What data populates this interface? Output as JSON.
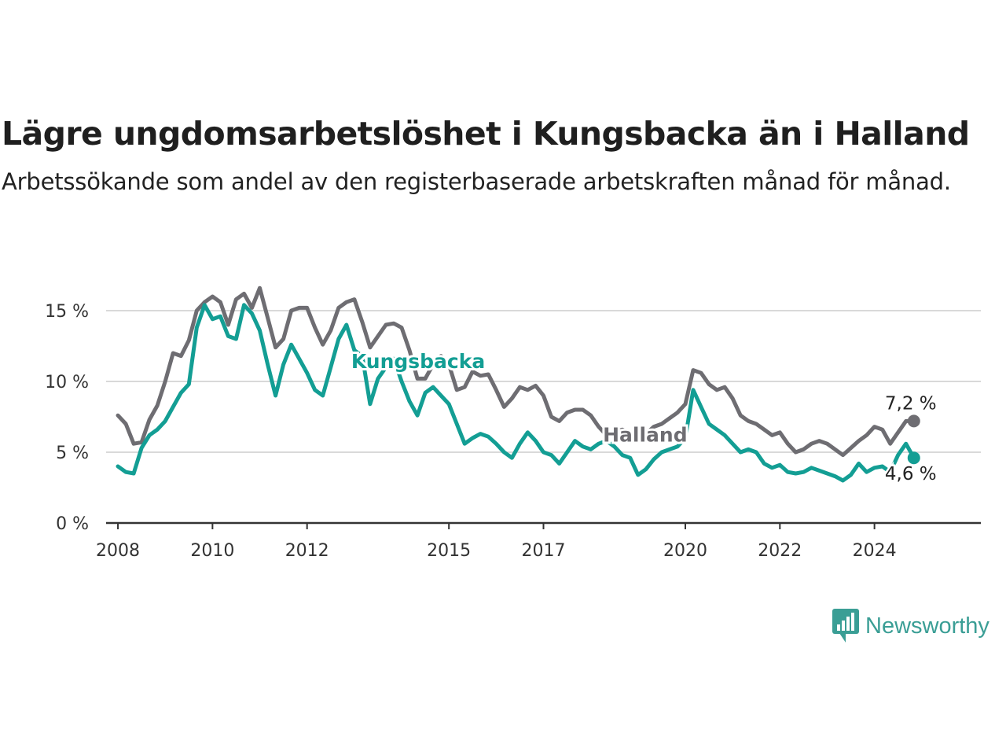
{
  "title": "Lägre ungdomsarbetslöshet i Kungsbacka än i Halland",
  "subtitle": "Arbetssökande som andel av den registerbaserade arbetskraften månad för månad.",
  "brand": {
    "name": "Newsworthy",
    "icon": "newsworthy-logo-icon",
    "color": "#3a9e95"
  },
  "chart_data": {
    "type": "line",
    "x_axis": {
      "type": "date",
      "ticks": [
        "2008",
        "2010",
        "2012",
        "2015",
        "2017",
        "2020",
        "2022",
        "2024"
      ]
    },
    "y_axis": {
      "ticks": [
        "0 %",
        "5 %",
        "10 %",
        "15 %"
      ],
      "tick_values": [
        0,
        5,
        10,
        15
      ],
      "ylim": [
        0,
        17.5
      ]
    },
    "grid": true,
    "series": [
      {
        "name": "Halland",
        "color": "#6e6d72",
        "end_label": "7,2 %",
        "points": [
          [
            "2008-01",
            7.6
          ],
          [
            "2008-03",
            7.0
          ],
          [
            "2008-05",
            5.6
          ],
          [
            "2008-07",
            5.7
          ],
          [
            "2008-09",
            7.3
          ],
          [
            "2008-11",
            8.3
          ],
          [
            "2009-01",
            10.0
          ],
          [
            "2009-03",
            12.0
          ],
          [
            "2009-05",
            11.8
          ],
          [
            "2009-07",
            12.9
          ],
          [
            "2009-09",
            15.0
          ],
          [
            "2009-11",
            15.6
          ],
          [
            "2010-01",
            16.0
          ],
          [
            "2010-03",
            15.6
          ],
          [
            "2010-05",
            14.0
          ],
          [
            "2010-07",
            15.8
          ],
          [
            "2010-09",
            16.2
          ],
          [
            "2010-11",
            15.2
          ],
          [
            "2011-01",
            16.6
          ],
          [
            "2011-03",
            14.5
          ],
          [
            "2011-05",
            12.4
          ],
          [
            "2011-07",
            13.0
          ],
          [
            "2011-09",
            15.0
          ],
          [
            "2011-11",
            15.2
          ],
          [
            "2012-01",
            15.2
          ],
          [
            "2012-03",
            13.8
          ],
          [
            "2012-05",
            12.6
          ],
          [
            "2012-07",
            13.6
          ],
          [
            "2012-09",
            15.2
          ],
          [
            "2012-11",
            15.6
          ],
          [
            "2013-01",
            15.8
          ],
          [
            "2013-03",
            14.2
          ],
          [
            "2013-05",
            12.4
          ],
          [
            "2013-07",
            13.2
          ],
          [
            "2013-09",
            14.0
          ],
          [
            "2013-11",
            14.1
          ],
          [
            "2014-01",
            13.8
          ],
          [
            "2014-03",
            12.2
          ],
          [
            "2014-05",
            10.2
          ],
          [
            "2014-07",
            10.2
          ],
          [
            "2014-09",
            11.2
          ],
          [
            "2014-11",
            11.8
          ],
          [
            "2015-01",
            11.2
          ],
          [
            "2015-03",
            9.4
          ],
          [
            "2015-05",
            9.6
          ],
          [
            "2015-07",
            10.7
          ],
          [
            "2015-09",
            10.4
          ],
          [
            "2015-11",
            10.5
          ],
          [
            "2016-01",
            9.4
          ],
          [
            "2016-03",
            8.2
          ],
          [
            "2016-05",
            8.8
          ],
          [
            "2016-07",
            9.6
          ],
          [
            "2016-09",
            9.4
          ],
          [
            "2016-11",
            9.7
          ],
          [
            "2017-01",
            9.0
          ],
          [
            "2017-03",
            7.5
          ],
          [
            "2017-05",
            7.2
          ],
          [
            "2017-07",
            7.8
          ],
          [
            "2017-09",
            8.0
          ],
          [
            "2017-11",
            8.0
          ],
          [
            "2018-01",
            7.6
          ],
          [
            "2018-03",
            6.8
          ],
          [
            "2018-05",
            6.2
          ],
          [
            "2018-07",
            6.4
          ],
          [
            "2018-09",
            6.6
          ],
          [
            "2018-11",
            6.3
          ],
          [
            "2019-01",
            6.0
          ],
          [
            "2019-03",
            6.3
          ],
          [
            "2019-05",
            6.8
          ],
          [
            "2019-07",
            7.0
          ],
          [
            "2019-09",
            7.4
          ],
          [
            "2019-11",
            7.8
          ],
          [
            "2020-01",
            8.4
          ],
          [
            "2020-03",
            10.8
          ],
          [
            "2020-05",
            10.6
          ],
          [
            "2020-07",
            9.8
          ],
          [
            "2020-09",
            9.4
          ],
          [
            "2020-11",
            9.6
          ],
          [
            "2021-01",
            8.8
          ],
          [
            "2021-03",
            7.6
          ],
          [
            "2021-05",
            7.2
          ],
          [
            "2021-07",
            7.0
          ],
          [
            "2021-09",
            6.6
          ],
          [
            "2021-11",
            6.2
          ],
          [
            "2022-01",
            6.4
          ],
          [
            "2022-03",
            5.6
          ],
          [
            "2022-05",
            5.0
          ],
          [
            "2022-07",
            5.2
          ],
          [
            "2022-09",
            5.6
          ],
          [
            "2022-11",
            5.8
          ],
          [
            "2023-01",
            5.6
          ],
          [
            "2023-03",
            5.2
          ],
          [
            "2023-05",
            4.8
          ],
          [
            "2023-07",
            5.3
          ],
          [
            "2023-09",
            5.8
          ],
          [
            "2023-11",
            6.2
          ],
          [
            "2024-01",
            6.8
          ],
          [
            "2024-03",
            6.6
          ],
          [
            "2024-05",
            5.6
          ],
          [
            "2024-07",
            6.4
          ],
          [
            "2024-09",
            7.2
          ],
          [
            "2024-11",
            7.2
          ]
        ]
      },
      {
        "name": "Kungsbacka",
        "color": "#139e94",
        "end_label": "4,6 %",
        "points": [
          [
            "2008-01",
            4.0
          ],
          [
            "2008-03",
            3.6
          ],
          [
            "2008-05",
            3.5
          ],
          [
            "2008-07",
            5.3
          ],
          [
            "2008-09",
            6.2
          ],
          [
            "2008-11",
            6.6
          ],
          [
            "2009-01",
            7.2
          ],
          [
            "2009-03",
            8.2
          ],
          [
            "2009-05",
            9.2
          ],
          [
            "2009-07",
            9.8
          ],
          [
            "2009-09",
            13.8
          ],
          [
            "2009-11",
            15.4
          ],
          [
            "2010-01",
            14.4
          ],
          [
            "2010-03",
            14.6
          ],
          [
            "2010-05",
            13.2
          ],
          [
            "2010-07",
            13.0
          ],
          [
            "2010-09",
            15.4
          ],
          [
            "2010-11",
            14.8
          ],
          [
            "2011-01",
            13.6
          ],
          [
            "2011-03",
            11.2
          ],
          [
            "2011-05",
            9.0
          ],
          [
            "2011-07",
            11.2
          ],
          [
            "2011-09",
            12.6
          ],
          [
            "2011-11",
            11.6
          ],
          [
            "2012-01",
            10.6
          ],
          [
            "2012-03",
            9.4
          ],
          [
            "2012-05",
            9.0
          ],
          [
            "2012-07",
            11.0
          ],
          [
            "2012-09",
            13.0
          ],
          [
            "2012-11",
            14.0
          ],
          [
            "2013-01",
            12.2
          ],
          [
            "2013-03",
            11.8
          ],
          [
            "2013-05",
            8.4
          ],
          [
            "2013-07",
            10.2
          ],
          [
            "2013-09",
            11.0
          ],
          [
            "2013-11",
            11.6
          ],
          [
            "2014-01",
            10.0
          ],
          [
            "2014-03",
            8.6
          ],
          [
            "2014-05",
            7.6
          ],
          [
            "2014-07",
            9.2
          ],
          [
            "2014-09",
            9.6
          ],
          [
            "2014-11",
            9.0
          ],
          [
            "2015-01",
            8.4
          ],
          [
            "2015-03",
            7.0
          ],
          [
            "2015-05",
            5.6
          ],
          [
            "2015-07",
            6.0
          ],
          [
            "2015-09",
            6.3
          ],
          [
            "2015-11",
            6.1
          ],
          [
            "2016-01",
            5.6
          ],
          [
            "2016-03",
            5.0
          ],
          [
            "2016-05",
            4.6
          ],
          [
            "2016-07",
            5.6
          ],
          [
            "2016-09",
            6.4
          ],
          [
            "2016-11",
            5.8
          ],
          [
            "2017-01",
            5.0
          ],
          [
            "2017-03",
            4.8
          ],
          [
            "2017-05",
            4.2
          ],
          [
            "2017-07",
            5.0
          ],
          [
            "2017-09",
            5.8
          ],
          [
            "2017-11",
            5.4
          ],
          [
            "2018-01",
            5.2
          ],
          [
            "2018-03",
            5.6
          ],
          [
            "2018-05",
            5.8
          ],
          [
            "2018-07",
            5.4
          ],
          [
            "2018-09",
            4.8
          ],
          [
            "2018-11",
            4.6
          ],
          [
            "2019-01",
            3.4
          ],
          [
            "2019-03",
            3.8
          ],
          [
            "2019-05",
            4.5
          ],
          [
            "2019-07",
            5.0
          ],
          [
            "2019-09",
            5.2
          ],
          [
            "2019-11",
            5.4
          ],
          [
            "2020-01",
            6.0
          ],
          [
            "2020-03",
            9.4
          ],
          [
            "2020-05",
            8.2
          ],
          [
            "2020-07",
            7.0
          ],
          [
            "2020-09",
            6.6
          ],
          [
            "2020-11",
            6.2
          ],
          [
            "2021-01",
            5.6
          ],
          [
            "2021-03",
            5.0
          ],
          [
            "2021-05",
            5.2
          ],
          [
            "2021-07",
            5.0
          ],
          [
            "2021-09",
            4.2
          ],
          [
            "2021-11",
            3.9
          ],
          [
            "2022-01",
            4.1
          ],
          [
            "2022-03",
            3.6
          ],
          [
            "2022-05",
            3.5
          ],
          [
            "2022-07",
            3.6
          ],
          [
            "2022-09",
            3.9
          ],
          [
            "2022-11",
            3.7
          ],
          [
            "2023-01",
            3.5
          ],
          [
            "2023-03",
            3.3
          ],
          [
            "2023-05",
            3.0
          ],
          [
            "2023-07",
            3.4
          ],
          [
            "2023-09",
            4.2
          ],
          [
            "2023-11",
            3.6
          ],
          [
            "2024-01",
            3.9
          ],
          [
            "2024-03",
            4.0
          ],
          [
            "2024-05",
            3.6
          ],
          [
            "2024-07",
            4.8
          ],
          [
            "2024-09",
            5.6
          ],
          [
            "2024-11",
            4.6
          ]
        ]
      }
    ]
  }
}
